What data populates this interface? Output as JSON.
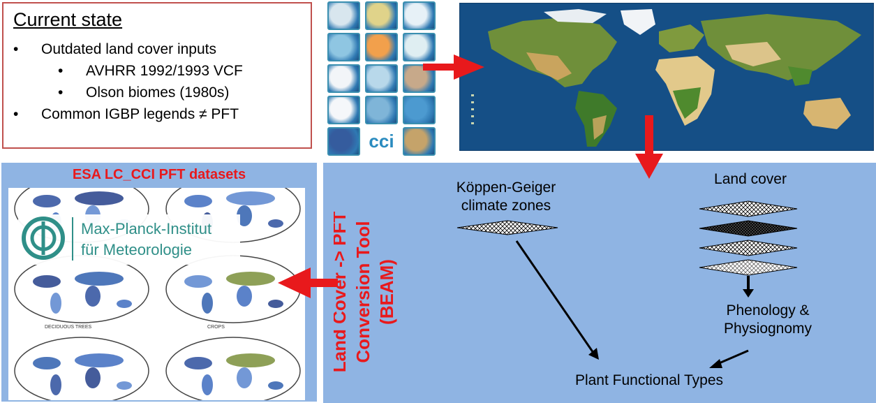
{
  "current_state": {
    "title": "Current state",
    "items": [
      {
        "text": "Outdated land cover inputs",
        "level": 1
      },
      {
        "text": "AVHRR 1992/1993 VCF",
        "level": 2
      },
      {
        "text": "Olson biomes (1980s)",
        "level": 2
      },
      {
        "text": "Common IGBP legends ≠ PFT",
        "level": 1
      }
    ]
  },
  "icon_grid": {
    "logo_text": "cci",
    "tile_colors": [
      "#d8e6ee",
      "#e0d38a",
      "#e7f1f7",
      "#8fc6e2",
      "#f2a04c",
      "#dfeef2",
      "#f2f5f8",
      "#b8d8ea",
      "#c7a98a",
      "#f5f7fa",
      "#7fb5d8",
      "#4c9ad0",
      "#355c9e",
      "#ffffff",
      "#c5a36a"
    ]
  },
  "left_panel": {
    "title": "ESA LC_CCI PFT datasets",
    "logo_line1": "Max-Planck-Institut",
    "logo_line2": "für Meteorologie",
    "map_caption_left": "DECIDUOUS TREES",
    "map_caption_right": "CROPS"
  },
  "tool": {
    "line1": "Land Cover -> PFT",
    "line2": "Conversion Tool",
    "line3": "(BEAM)"
  },
  "diagram": {
    "koppen_line1": "Köppen-Geiger",
    "koppen_line2": "climate zones",
    "land_cover": "Land cover",
    "phenology_line1": "Phenology &",
    "phenology_line2": "Physiognomy",
    "pft": "Plant Functional Types"
  },
  "colors": {
    "accent_red": "#e8191c",
    "panel_blue": "#8fb4e3",
    "ocean": "#154f86",
    "box_border": "#c0504d"
  }
}
